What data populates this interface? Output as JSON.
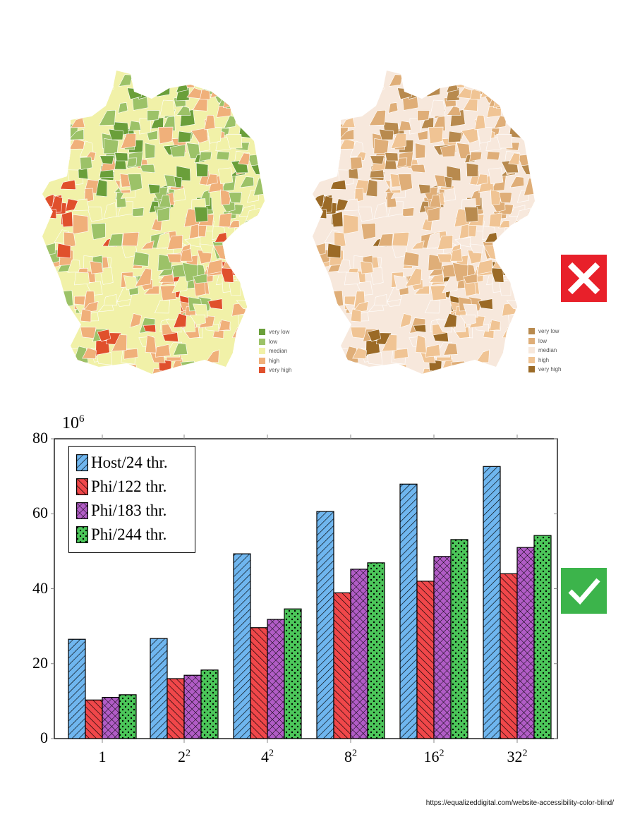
{
  "maps": {
    "legend_labels": [
      "very low",
      "low",
      "median",
      "high",
      "very high"
    ],
    "left_colors": [
      "#6a9f3a",
      "#9cc268",
      "#f1f1a8",
      "#f0b07a",
      "#e0502c"
    ],
    "right_colors": [
      "#b88a4e",
      "#dfae78",
      "#f7e8dc",
      "#f0c494",
      "#9b6a26"
    ],
    "bad_icon": "close-icon",
    "good_icon": "check-icon",
    "bad_color": "#e8202a",
    "good_color": "#3cb44b"
  },
  "chart_data": {
    "type": "bar",
    "title": "",
    "xlabel": "",
    "ylabel": "",
    "y_multiplier": "10^6",
    "ylim": [
      0,
      80
    ],
    "yticks": [
      "0",
      "20",
      "40",
      "60",
      "80"
    ],
    "categories": [
      {
        "base": "1",
        "exp": ""
      },
      {
        "base": "2",
        "exp": "2"
      },
      {
        "base": "4",
        "exp": "2"
      },
      {
        "base": "8",
        "exp": "2"
      },
      {
        "base": "16",
        "exp": "2"
      },
      {
        "base": "32",
        "exp": "2"
      }
    ],
    "legend_position": "top-left",
    "series": [
      {
        "name": "Host/24 thr.",
        "color": "#6fb6ef",
        "pattern": "north-east-lines",
        "values": [
          26.5,
          26.7,
          49.3,
          60.6,
          67.9,
          72.6
        ]
      },
      {
        "name": "Phi/122 thr.",
        "color": "#f0474a",
        "pattern": "north-west-lines",
        "values": [
          10.3,
          16.0,
          29.6,
          38.9,
          42.0,
          44.0
        ]
      },
      {
        "name": "Phi/183 thr.",
        "color": "#b15cc6",
        "pattern": "crosshatch",
        "values": [
          11.0,
          16.9,
          31.8,
          45.2,
          48.6,
          51.0
        ]
      },
      {
        "name": "Phi/244 thr.",
        "color": "#4cc75a",
        "pattern": "dots",
        "values": [
          11.7,
          18.3,
          34.6,
          46.9,
          53.1,
          54.2
        ]
      }
    ]
  },
  "source_url": "https://equalizeddigital.com/website-accessibility-color-blind/"
}
